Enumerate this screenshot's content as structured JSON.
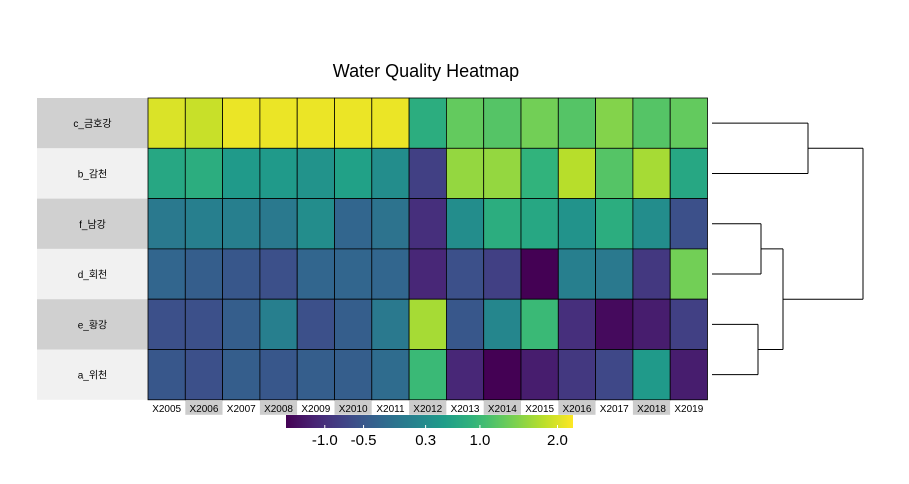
{
  "chart_data": {
    "type": "heatmap",
    "title": "Water Quality Heatmap",
    "columns": [
      "X2005",
      "X2006",
      "X2007",
      "X2008",
      "X2009",
      "X2010",
      "X2011",
      "X2012",
      "X2013",
      "X2014",
      "X2015",
      "X2016",
      "X2017",
      "X2018",
      "X2019"
    ],
    "rows": [
      "c_금호강",
      "b_감천",
      "f_남강",
      "d_회천",
      "e_황강",
      "a_위천"
    ],
    "values": [
      [
        2.0,
        1.9,
        2.1,
        2.1,
        2.1,
        2.1,
        2.1,
        0.8,
        1.3,
        1.2,
        1.4,
        1.2,
        1.5,
        1.2,
        1.3
      ],
      [
        0.7,
        0.8,
        0.5,
        0.5,
        0.4,
        0.6,
        0.3,
        -0.8,
        1.6,
        1.6,
        0.9,
        1.8,
        1.2,
        1.7,
        0.7
      ],
      [
        0.0,
        0.1,
        0.1,
        0.0,
        0.3,
        -0.3,
        -0.1,
        -1.0,
        0.3,
        0.8,
        0.7,
        0.4,
        0.8,
        0.3,
        -0.6
      ],
      [
        -0.3,
        -0.4,
        -0.5,
        -0.6,
        -0.3,
        -0.3,
        -0.3,
        -1.1,
        -0.6,
        -0.8,
        -1.5,
        0.1,
        0.0,
        -0.9,
        1.4
      ],
      [
        -0.6,
        -0.6,
        -0.4,
        0.1,
        -0.6,
        -0.4,
        0.0,
        1.7,
        -0.5,
        0.2,
        1.0,
        -1.0,
        -1.4,
        -1.2,
        -0.8
      ],
      [
        -0.5,
        -0.6,
        -0.4,
        -0.5,
        -0.4,
        -0.4,
        -0.2,
        1.0,
        -1.1,
        -1.6,
        -1.2,
        -0.9,
        -0.7,
        0.5,
        -1.2
      ]
    ],
    "color_scale": {
      "name": "viridis",
      "min": -1.5,
      "max": 2.2,
      "ticks": [
        -1.0,
        -0.5,
        0.3,
        1.0,
        2.0
      ],
      "tick_labels": [
        "-1.0",
        "-0.5",
        "0.3",
        "1.0",
        "2.0"
      ]
    },
    "row_dendrogram": {
      "position": "right",
      "clusters": [
        [
          "c_금호강",
          "b_감천"
        ],
        [
          [
            "f_남강",
            "d_회천"
          ],
          [
            "e_황강",
            "a_위천"
          ]
        ]
      ]
    },
    "legend_placement": "bottom",
    "grid": false
  }
}
